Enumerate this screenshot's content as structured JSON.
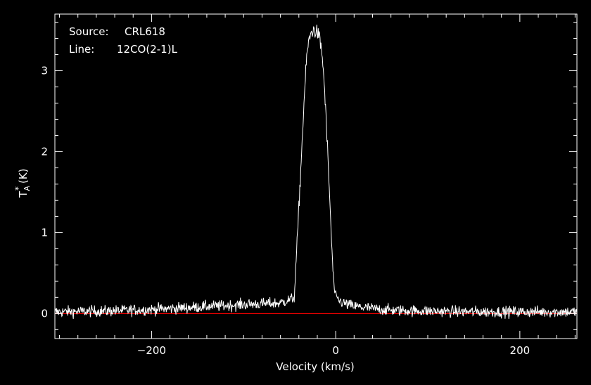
{
  "chart_data": {
    "type": "line",
    "annotations": [
      {
        "key": "Source:",
        "value": "CRL618"
      },
      {
        "key": "Line:",
        "value": "12CO(2-1)L"
      }
    ],
    "xlabel": "Velocity (km/s)",
    "ylabel": {
      "base": "T",
      "sup": "*",
      "sub": "A",
      "unit": "(K)"
    },
    "xlim": [
      -305,
      262
    ],
    "ylim": [
      -0.31,
      3.7
    ],
    "xticks": [
      {
        "value": -200,
        "label": "−200"
      },
      {
        "value": 0,
        "label": "0"
      },
      {
        "value": 200,
        "label": "200"
      }
    ],
    "yticks": [
      {
        "value": 0,
        "label": "0"
      },
      {
        "value": 1,
        "label": "1"
      },
      {
        "value": 2,
        "label": "2"
      },
      {
        "value": 3,
        "label": "3"
      }
    ],
    "grid": false,
    "noise_rms": 0.035,
    "channel_step_kms": 0.5,
    "series": [
      {
        "color": "#ffffff",
        "x": [
          -305,
          -250,
          -200,
          -150,
          -100,
          -60,
          -48,
          -45,
          -43,
          -40,
          -37,
          -34,
          -31,
          -28,
          -26,
          -24,
          -22,
          -20,
          -18,
          -16,
          -14,
          -12,
          -10,
          -8,
          -6,
          -4,
          -2,
          0,
          2,
          5,
          10,
          20,
          40,
          60,
          100,
          150,
          200,
          262
        ],
        "y": [
          0.02,
          0.03,
          0.05,
          0.08,
          0.11,
          0.13,
          0.18,
          0.2,
          0.65,
          1.3,
          2.0,
          2.7,
          3.25,
          3.42,
          3.48,
          3.5,
          3.49,
          3.47,
          3.42,
          3.3,
          3.1,
          2.75,
          2.3,
          1.8,
          1.3,
          0.75,
          0.35,
          0.2,
          0.18,
          0.15,
          0.12,
          0.09,
          0.06,
          0.04,
          0.03,
          0.02,
          0.02,
          0.02
        ]
      },
      {
        "color": "#ff0000",
        "x": [
          -305,
          262
        ],
        "y": [
          0,
          0
        ]
      }
    ]
  }
}
